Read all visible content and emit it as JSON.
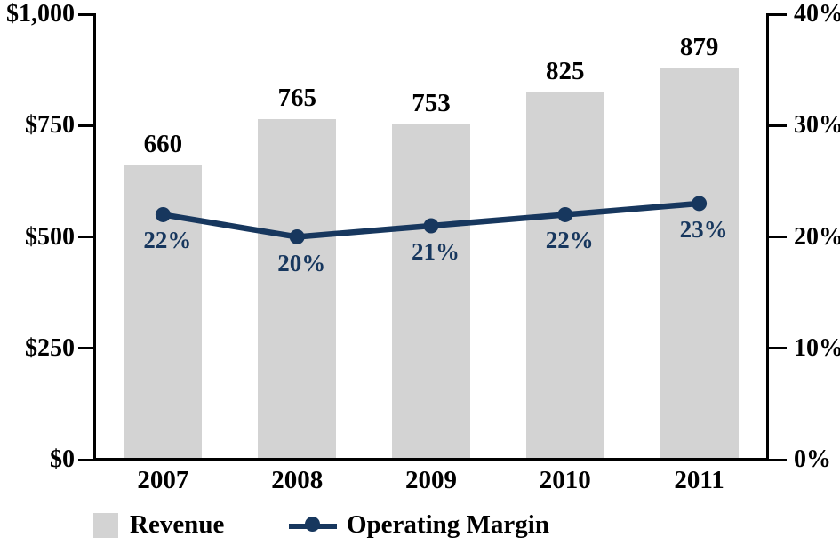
{
  "chart_data": {
    "type": "bar",
    "title": "",
    "categories": [
      "2007",
      "2008",
      "2009",
      "2010",
      "2011"
    ],
    "series": [
      {
        "name": "Revenue",
        "type": "bar",
        "axis": "left",
        "values": [
          660,
          765,
          753,
          825,
          879
        ],
        "labels": [
          "660",
          "765",
          "753",
          "825",
          "879"
        ]
      },
      {
        "name": "Operating Margin",
        "type": "line",
        "axis": "right",
        "values": [
          22,
          20,
          21,
          22,
          23
        ],
        "labels": [
          "22%",
          "20%",
          "21%",
          "22%",
          "23%"
        ]
      }
    ],
    "left_axis": {
      "tick_labels": [
        "$0",
        "$250",
        "$500",
        "$750",
        "$1,000"
      ],
      "tick_values": [
        0,
        250,
        500,
        750,
        1000
      ],
      "min": 0,
      "max": 1000
    },
    "right_axis": {
      "tick_labels": [
        "0%",
        "10%",
        "20%",
        "30%",
        "40%"
      ],
      "tick_values": [
        0,
        10,
        20,
        30,
        40
      ],
      "min": 0,
      "max": 40
    },
    "legend": [
      {
        "label": "Revenue",
        "swatch": "bar"
      },
      {
        "label": "Operating Margin",
        "swatch": "line"
      }
    ],
    "grid": false,
    "legend_position": "bottom"
  },
  "colors": {
    "bar": "#d3d3d3",
    "line": "#17375e",
    "pct_label": "#17375e",
    "axis": "#000000",
    "text": "#000000",
    "background": "#ffffff"
  }
}
